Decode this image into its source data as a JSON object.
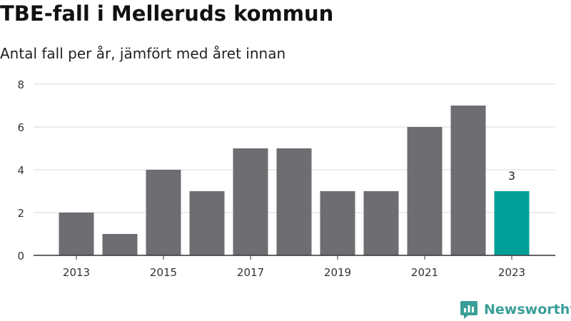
{
  "title": "TBE-fall i Melleruds kommun",
  "subtitle": "Antal fall per år, jämfört med året innan",
  "brand": "Newsworthy",
  "colors": {
    "bar": "#6e6d72",
    "highlight": "#00a098",
    "brand": "#3a9e97",
    "grid": "#d9d9d9",
    "axis": "#333333"
  },
  "chart_data": {
    "type": "bar",
    "title": "TBE-fall i Melleruds kommun",
    "subtitle": "Antal fall per år, jämfört med året innan",
    "categories": [
      "2013",
      "2014",
      "2015",
      "2016",
      "2017",
      "2018",
      "2019",
      "2020",
      "2021",
      "2022",
      "2023"
    ],
    "values": [
      2,
      1,
      4,
      3,
      5,
      5,
      3,
      3,
      6,
      7,
      3
    ],
    "x_tick_labels": [
      "2013",
      "2015",
      "2017",
      "2019",
      "2021",
      "2023"
    ],
    "y_ticks": [
      "0",
      "2",
      "4",
      "6",
      "8"
    ],
    "ylim": [
      0,
      8
    ],
    "highlight_category": "2023",
    "data_labels": [
      {
        "category": "2023",
        "text": "3"
      }
    ],
    "xlabel": "",
    "ylabel": "",
    "grid": true,
    "legend": "none"
  }
}
